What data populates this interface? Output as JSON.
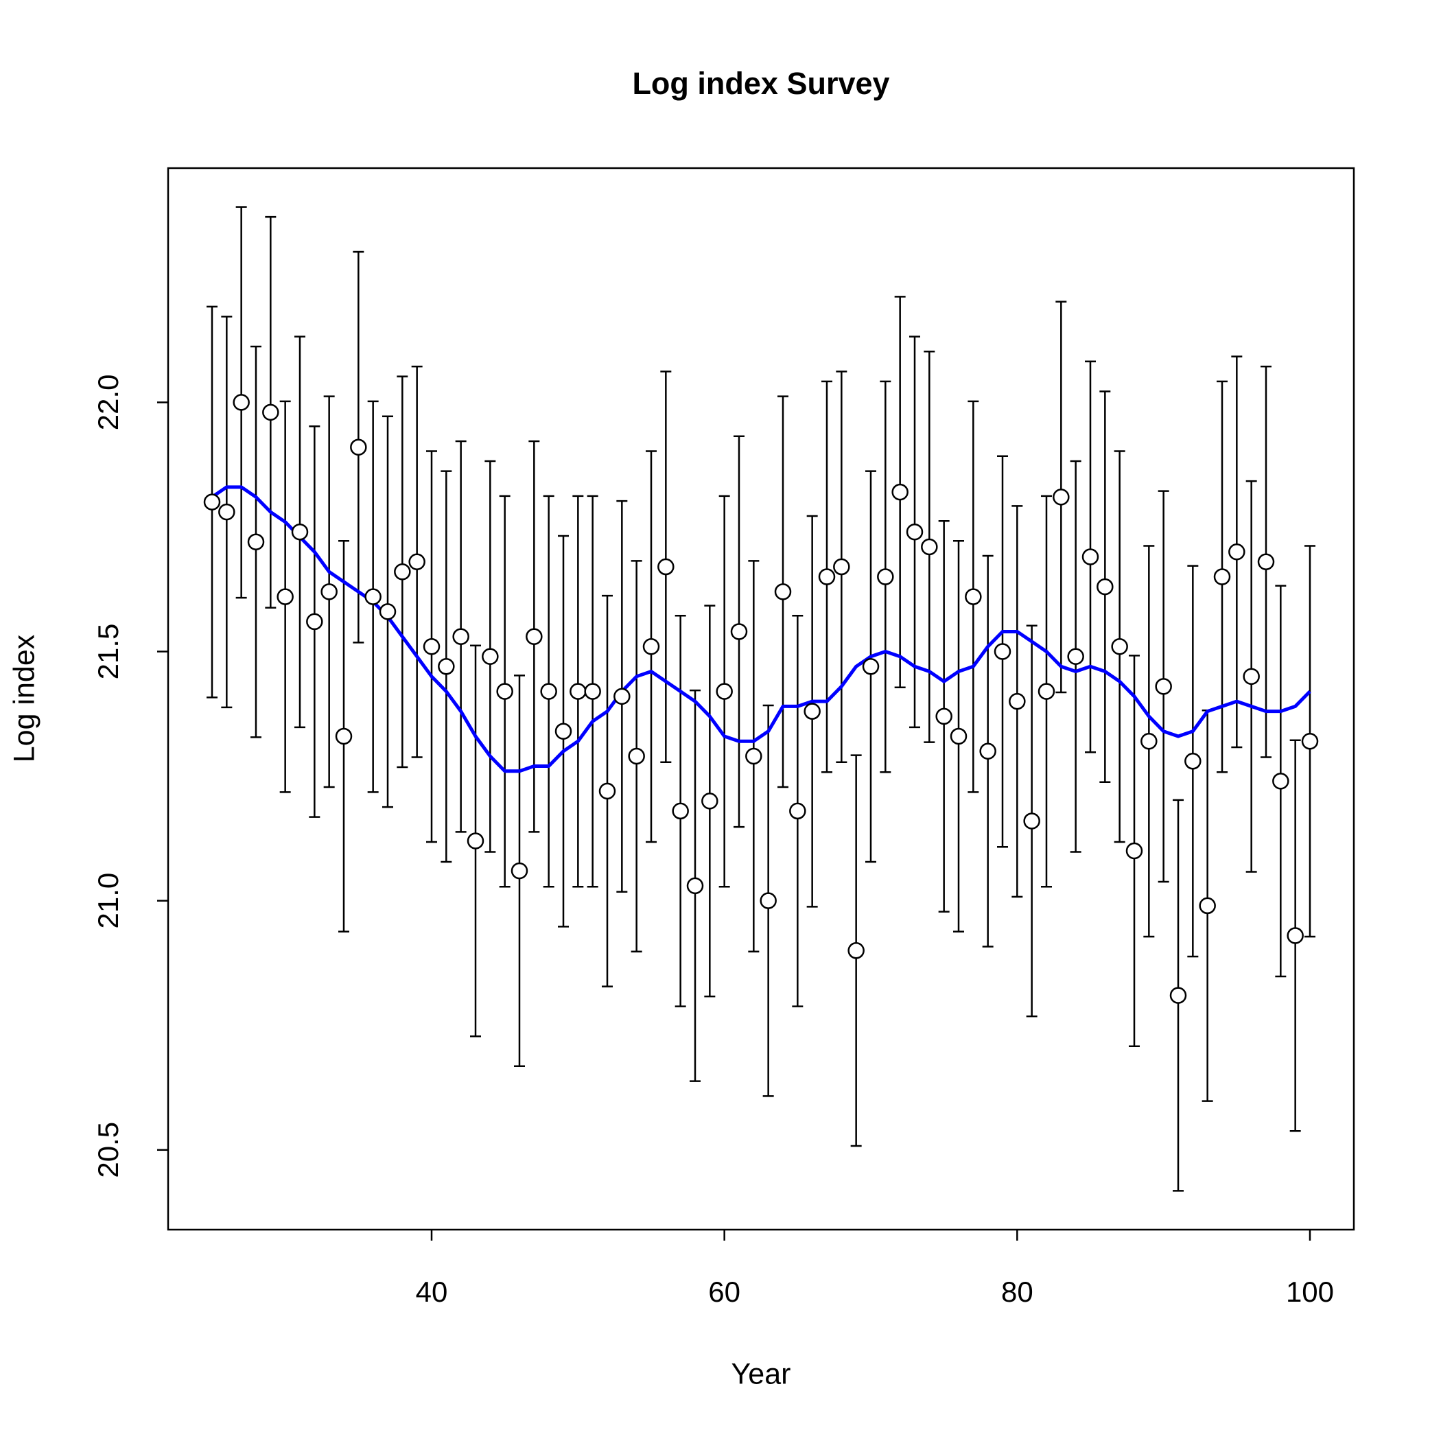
{
  "chart_data": {
    "type": "errorbar",
    "title": "Log index Survey",
    "xlabel": "Year",
    "ylabel": "Log index",
    "x": [
      25,
      26,
      27,
      28,
      29,
      30,
      31,
      32,
      33,
      34,
      35,
      36,
      37,
      38,
      39,
      40,
      41,
      42,
      43,
      44,
      45,
      46,
      47,
      48,
      49,
      50,
      51,
      52,
      53,
      54,
      55,
      56,
      57,
      58,
      59,
      60,
      61,
      62,
      63,
      64,
      65,
      66,
      67,
      68,
      69,
      70,
      71,
      72,
      73,
      74,
      75,
      76,
      77,
      78,
      79,
      80,
      81,
      82,
      83,
      84,
      85,
      86,
      87,
      88,
      89,
      90,
      91,
      92,
      93,
      94,
      95,
      96,
      97,
      98,
      99,
      100
    ],
    "values": [
      21.8,
      21.78,
      22.0,
      21.72,
      21.98,
      21.61,
      21.74,
      21.56,
      21.62,
      21.33,
      21.91,
      21.61,
      21.58,
      21.66,
      21.68,
      21.51,
      21.47,
      21.53,
      21.12,
      21.49,
      21.42,
      21.06,
      21.53,
      21.42,
      21.34,
      21.42,
      21.42,
      21.22,
      21.41,
      21.29,
      21.51,
      21.67,
      21.18,
      21.03,
      21.2,
      21.42,
      21.54,
      21.29,
      21.0,
      21.62,
      21.18,
      21.38,
      21.65,
      21.67,
      20.9,
      21.47,
      21.65,
      21.82,
      21.74,
      21.71,
      21.37,
      21.33,
      21.61,
      21.3,
      21.5,
      21.4,
      21.16,
      21.42,
      21.81,
      21.49,
      21.69,
      21.63,
      21.51,
      21.1,
      21.32,
      21.43,
      20.81,
      21.28,
      20.99,
      21.65,
      21.7,
      21.45,
      21.68,
      21.24,
      20.93,
      21.32
    ],
    "errors": [
      0.392,
      0.392,
      0.392,
      0.392,
      0.392,
      0.392,
      0.392,
      0.392,
      0.392,
      0.392,
      0.392,
      0.392,
      0.392,
      0.392,
      0.392,
      0.392,
      0.392,
      0.392,
      0.392,
      0.392,
      0.392,
      0.392,
      0.392,
      0.392,
      0.392,
      0.392,
      0.392,
      0.392,
      0.392,
      0.392,
      0.392,
      0.392,
      0.392,
      0.392,
      0.392,
      0.392,
      0.392,
      0.392,
      0.392,
      0.392,
      0.392,
      0.392,
      0.392,
      0.392,
      0.392,
      0.392,
      0.392,
      0.392,
      0.392,
      0.392,
      0.392,
      0.392,
      0.392,
      0.392,
      0.392,
      0.392,
      0.392,
      0.392,
      0.392,
      0.392,
      0.392,
      0.392,
      0.392,
      0.392,
      0.392,
      0.392,
      0.392,
      0.392,
      0.392,
      0.392,
      0.392,
      0.392,
      0.392,
      0.392,
      0.392,
      0.392
    ],
    "fit": [
      21.81,
      21.83,
      21.83,
      21.81,
      21.78,
      21.76,
      21.73,
      21.7,
      21.66,
      21.64,
      21.62,
      21.6,
      21.57,
      21.53,
      21.49,
      21.45,
      21.42,
      21.38,
      21.33,
      21.29,
      21.26,
      21.26,
      21.27,
      21.27,
      21.3,
      21.32,
      21.36,
      21.38,
      21.42,
      21.45,
      21.46,
      21.44,
      21.42,
      21.4,
      21.37,
      21.33,
      21.32,
      21.32,
      21.34,
      21.39,
      21.39,
      21.4,
      21.4,
      21.43,
      21.47,
      21.49,
      21.5,
      21.49,
      21.47,
      21.46,
      21.44,
      21.46,
      21.47,
      21.51,
      21.54,
      21.54,
      21.52,
      21.5,
      21.47,
      21.46,
      21.47,
      21.46,
      21.44,
      21.41,
      21.37,
      21.34,
      21.33,
      21.34,
      21.38,
      21.39,
      21.4,
      21.39,
      21.38,
      21.38,
      21.39,
      21.42
    ],
    "color": "#000000",
    "point_fill": "#ffffff",
    "fit_color": "#0000ff",
    "xlim": [
      22,
      103
    ],
    "ylim": [
      20.34,
      22.47
    ],
    "xticks": [
      40,
      60,
      80,
      100
    ],
    "yticks": [
      {
        "value": 20.5,
        "label": "20.5"
      },
      {
        "value": 21,
        "label": "21.0"
      },
      {
        "value": 21.5,
        "label": "21.5"
      },
      {
        "value": 22,
        "label": "22.0"
      }
    ]
  }
}
